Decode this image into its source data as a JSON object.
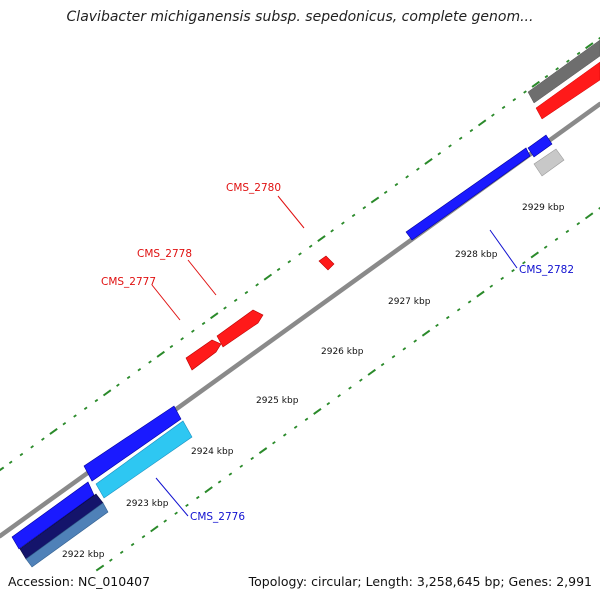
{
  "title": "Clavibacter michiganensis subsp. sepedonicus, complete genom...",
  "footer": {
    "accession": "Accession: NC_010407",
    "topology": "Topology: circular; Length: 3,258,645 bp; Genes: 2,991"
  },
  "scale": {
    "ticks": [
      "2922 kbp",
      "2923 kbp",
      "2924 kbp",
      "2925 kbp",
      "2926 kbp",
      "2927 kbp",
      "2928 kbp",
      "2929 kbp"
    ]
  },
  "labels": {
    "cms2780": "CMS_2780",
    "cms2778": "CMS_2778",
    "cms2777": "CMS_2777",
    "cms2782": "CMS_2782",
    "cms2776": "CMS_2776"
  },
  "colors": {
    "forward": "#ff1a1a",
    "reverse": "#1a1aff",
    "cyan": "#2ec7f2",
    "navy": "#14146b",
    "steel": "#4f81b8",
    "gray": "#6e6e6e",
    "light_gray": "#c8c8c8",
    "tick_green": "#2a8a2a",
    "label_red": "#e01010",
    "label_blue": "#1010d0"
  }
}
